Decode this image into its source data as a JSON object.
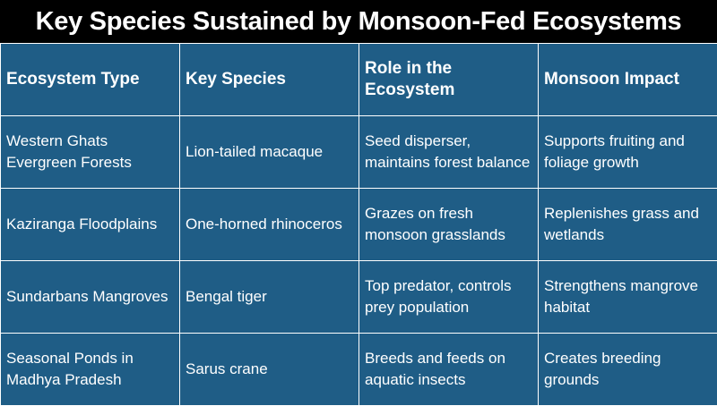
{
  "title": "Key Species Sustained by Monsoon-Fed Ecosystems",
  "colors": {
    "title_background": "#000000",
    "table_background": "#1f5d86",
    "text": "#ffffff",
    "grid_lines": "#ffffff"
  },
  "table": {
    "headers": [
      "Ecosystem Type",
      "Key Species",
      "Role in the Ecosystem",
      "Monsoon Impact"
    ],
    "rows": [
      [
        "Western Ghats Evergreen Forests",
        "Lion-tailed macaque",
        "Seed disperser, maintains forest balance",
        "Supports fruiting and foliage growth"
      ],
      [
        "Kaziranga Floodplains",
        "One-horned rhinoceros",
        "Grazes on fresh monsoon grasslands",
        "Replenishes grass and wetlands"
      ],
      [
        "Sundarbans Mangroves",
        "Bengal tiger",
        "Top predator, controls prey population",
        "Strengthens mangrove habitat"
      ],
      [
        "Seasonal Ponds in Madhya Pradesh",
        "Sarus crane",
        "Breeds and feeds on aquatic insects",
        "Creates breeding grounds"
      ]
    ]
  }
}
